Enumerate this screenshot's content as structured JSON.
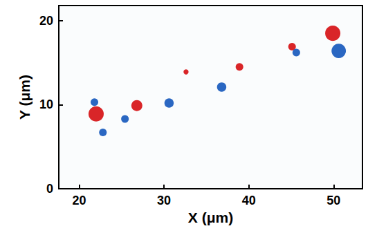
{
  "chart_data": {
    "type": "scatter",
    "x_label": "X (μm)",
    "y_label": "Y (μm)",
    "xlim": [
      17.6,
      53.4
    ],
    "xticks": [
      20,
      30,
      40,
      50
    ],
    "ylim": [
      0,
      21.8
    ],
    "yticks": [
      0,
      10,
      20
    ],
    "grid": false,
    "series": [
      {
        "color": "#d7191c",
        "marker": "circle",
        "values": [
          [
            22.0,
            8.9
          ],
          [
            26.8,
            9.9
          ],
          [
            32.6,
            13.9
          ],
          [
            38.9,
            14.5
          ],
          [
            45.1,
            16.9
          ],
          [
            49.9,
            18.5
          ]
        ],
        "sizes": [
          1.8,
          1.3,
          0.6,
          0.9,
          0.9,
          1.8
        ]
      },
      {
        "color": "#1f5fbf",
        "marker": "circle",
        "values": [
          [
            21.8,
            10.3
          ],
          [
            22.8,
            6.7
          ],
          [
            25.4,
            8.3
          ],
          [
            30.6,
            10.2
          ],
          [
            36.8,
            12.1
          ],
          [
            45.6,
            16.2
          ],
          [
            50.6,
            16.4
          ]
        ],
        "sizes": [
          0.9,
          0.9,
          0.9,
          1.1,
          1.1,
          0.9,
          1.7
        ]
      }
    ]
  }
}
